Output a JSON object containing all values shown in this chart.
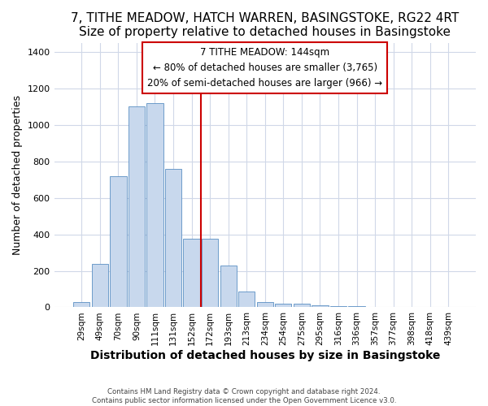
{
  "title": "7, TITHE MEADOW, HATCH WARREN, BASINGSTOKE, RG22 4RT",
  "subtitle": "Size of property relative to detached houses in Basingstoke",
  "xlabel": "Distribution of detached houses by size in Basingstoke",
  "ylabel": "Number of detached properties",
  "categories": [
    "29sqm",
    "49sqm",
    "70sqm",
    "90sqm",
    "111sqm",
    "131sqm",
    "152sqm",
    "172sqm",
    "193sqm",
    "213sqm",
    "234sqm",
    "254sqm",
    "275sqm",
    "295sqm",
    "316sqm",
    "336sqm",
    "357sqm",
    "377sqm",
    "398sqm",
    "418sqm",
    "439sqm"
  ],
  "values": [
    30,
    240,
    720,
    1100,
    1120,
    760,
    375,
    375,
    228,
    85,
    30,
    20,
    18,
    10,
    8,
    5,
    0,
    0,
    0,
    0,
    0
  ],
  "bar_color": "#c8d8ed",
  "bar_edge_color": "#5a8fc3",
  "annotation_title": "7 TITHE MEADOW: 144sqm",
  "annotation_line1": "← 80% of detached houses are smaller (3,765)",
  "annotation_line2": "20% of semi-detached houses are larger (966) →",
  "annotation_box_color": "#ffffff",
  "annotation_box_edge": "#cc0000",
  "vline_color": "#cc0000",
  "vline_x": 6.5,
  "ylim": [
    0,
    1450
  ],
  "yticks": [
    0,
    200,
    400,
    600,
    800,
    1000,
    1200,
    1400
  ],
  "footer_line1": "Contains HM Land Registry data © Crown copyright and database right 2024.",
  "footer_line2": "Contains public sector information licensed under the Open Government Licence v3.0.",
  "background_color": "#ffffff",
  "plot_bg_color": "#ffffff",
  "grid_color": "#d0d8e8",
  "title_fontsize": 11,
  "subtitle_fontsize": 10,
  "xlabel_fontsize": 10,
  "ylabel_fontsize": 9
}
